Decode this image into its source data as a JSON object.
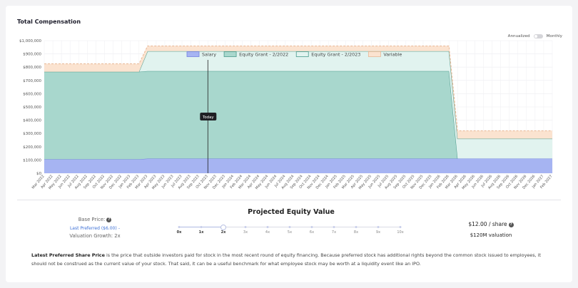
{
  "page": {
    "title": "Total Compensation"
  },
  "toggle": {
    "left_label": "Annualized",
    "right_label": "Monthly"
  },
  "chart_data": {
    "type": "area",
    "stacked": true,
    "title": "",
    "xlabel": "",
    "ylabel": "",
    "ylim": [
      0,
      1000000
    ],
    "y_ticks": [
      "$0",
      "$100,000",
      "$200,000",
      "$300,000",
      "$400,000",
      "$500,000",
      "$600,000",
      "$700,000",
      "$800,000",
      "$900,000",
      "$1,000,000"
    ],
    "grid": true,
    "legend_position": "top",
    "x": [
      "Mar 2022",
      "Apr 2022",
      "May 2022",
      "Jun 2022",
      "Jul 2022",
      "Aug 2022",
      "Sep 2022",
      "Oct 2022",
      "Nov 2022",
      "Dec 2022",
      "Jan 2023",
      "Feb 2023",
      "Mar 2023",
      "Apr 2023",
      "May 2023",
      "Jun 2023",
      "Jul 2023",
      "Aug 2023",
      "Sep 2023",
      "Oct 2023",
      "Nov 2023",
      "Dec 2023",
      "Jan 2024",
      "Feb 2024",
      "Mar 2024",
      "Apr 2024",
      "May 2024",
      "Jun 2024",
      "Jul 2024",
      "Aug 2024",
      "Sep 2024",
      "Oct 2024",
      "Nov 2024",
      "Dec 2024",
      "Jan 2025",
      "Feb 2025",
      "Mar 2025",
      "Apr 2025",
      "May 2025",
      "Jun 2025",
      "Jul 2025",
      "Aug 2025",
      "Sep 2025",
      "Oct 2025",
      "Nov 2025",
      "Dec 2025",
      "Jan 2026",
      "Feb 2026",
      "Mar 2026",
      "Apr 2026",
      "May 2026",
      "Jun 2026",
      "Jul 2026",
      "Aug 2026",
      "Sep 2026",
      "Oct 2026",
      "Nov 2026",
      "Dec 2026",
      "Jan 2027",
      "Feb 2027"
    ],
    "series": [
      {
        "name": "Salary",
        "color": "#a6b4f2",
        "border": "#7583e0",
        "values": [
          105000,
          105000,
          105000,
          105000,
          105000,
          105000,
          105000,
          105000,
          105000,
          105000,
          105000,
          105000,
          110000,
          110000,
          110000,
          110000,
          110000,
          110000,
          110000,
          110000,
          110000,
          110000,
          110000,
          110000,
          110000,
          110000,
          110000,
          110000,
          110000,
          110000,
          110000,
          110000,
          110000,
          110000,
          110000,
          110000,
          110000,
          110000,
          110000,
          110000,
          110000,
          110000,
          110000,
          110000,
          110000,
          110000,
          110000,
          110000,
          110000,
          110000,
          110000,
          110000,
          110000,
          110000,
          110000,
          110000,
          110000,
          110000,
          110000,
          110000
        ]
      },
      {
        "name": "Equity Grant - 2/2022",
        "color": "#a8d7cd",
        "border": "#4a9a8c",
        "values": [
          660000,
          660000,
          660000,
          660000,
          660000,
          660000,
          660000,
          660000,
          660000,
          660000,
          660000,
          660000,
          660000,
          660000,
          660000,
          660000,
          660000,
          660000,
          660000,
          660000,
          660000,
          660000,
          660000,
          660000,
          660000,
          660000,
          660000,
          660000,
          660000,
          660000,
          660000,
          660000,
          660000,
          660000,
          660000,
          660000,
          660000,
          660000,
          660000,
          660000,
          660000,
          660000,
          660000,
          660000,
          660000,
          660000,
          660000,
          660000,
          0,
          0,
          0,
          0,
          0,
          0,
          0,
          0,
          0,
          0,
          0,
          0
        ]
      },
      {
        "name": "Equity Grant - 2/2023",
        "color": "#e1f3ef",
        "border": "#4a9a8c",
        "values": [
          0,
          0,
          0,
          0,
          0,
          0,
          0,
          0,
          0,
          0,
          0,
          0,
          150000,
          150000,
          150000,
          150000,
          150000,
          150000,
          150000,
          150000,
          150000,
          150000,
          150000,
          150000,
          150000,
          150000,
          150000,
          150000,
          150000,
          150000,
          150000,
          150000,
          150000,
          150000,
          150000,
          150000,
          150000,
          150000,
          150000,
          150000,
          150000,
          150000,
          150000,
          150000,
          150000,
          150000,
          150000,
          150000,
          150000,
          150000,
          150000,
          150000,
          150000,
          150000,
          150000,
          150000,
          150000,
          150000,
          150000,
          150000
        ]
      },
      {
        "name": "Variable",
        "color": "#fbe3d0",
        "border": "#e8b896",
        "values": [
          60000,
          60000,
          60000,
          60000,
          60000,
          60000,
          60000,
          60000,
          60000,
          60000,
          60000,
          60000,
          40000,
          40000,
          40000,
          40000,
          40000,
          40000,
          40000,
          40000,
          40000,
          40000,
          40000,
          40000,
          40000,
          40000,
          40000,
          40000,
          40000,
          40000,
          40000,
          40000,
          40000,
          40000,
          40000,
          40000,
          40000,
          40000,
          40000,
          40000,
          40000,
          40000,
          40000,
          40000,
          40000,
          40000,
          40000,
          40000,
          60000,
          60000,
          60000,
          60000,
          60000,
          60000,
          60000,
          60000,
          60000,
          60000,
          60000,
          60000
        ]
      }
    ],
    "annotations": [
      {
        "label": "Today",
        "x": "Oct 2023"
      }
    ]
  },
  "equity": {
    "title": "Projected Equity Value",
    "base_price_label": "Base Price:",
    "last_preferred": "Last Preferred ($6.00)",
    "dash": "-",
    "valuation_growth": "Valuation Growth: 2x",
    "slider_labels": [
      "0x",
      "1x",
      "2x",
      "3x",
      "4x",
      "5x",
      "6x",
      "7x",
      "8x",
      "9x",
      "10x"
    ],
    "slider_value": 2,
    "share_price": "$12.00 / share",
    "valuation": "$120M valuation"
  },
  "note": {
    "bold": "Latest Preferred Share Price",
    "text": " is the price that outside investors paid for stock in the most recent round of equity financing. Because preferred stock has additional rights beyond the common stock issued to employees, it should not be construed as the current value of your stock. That said, it can be a useful benchmark for what employee stock may be worth at a liquidity event like an IPO."
  }
}
